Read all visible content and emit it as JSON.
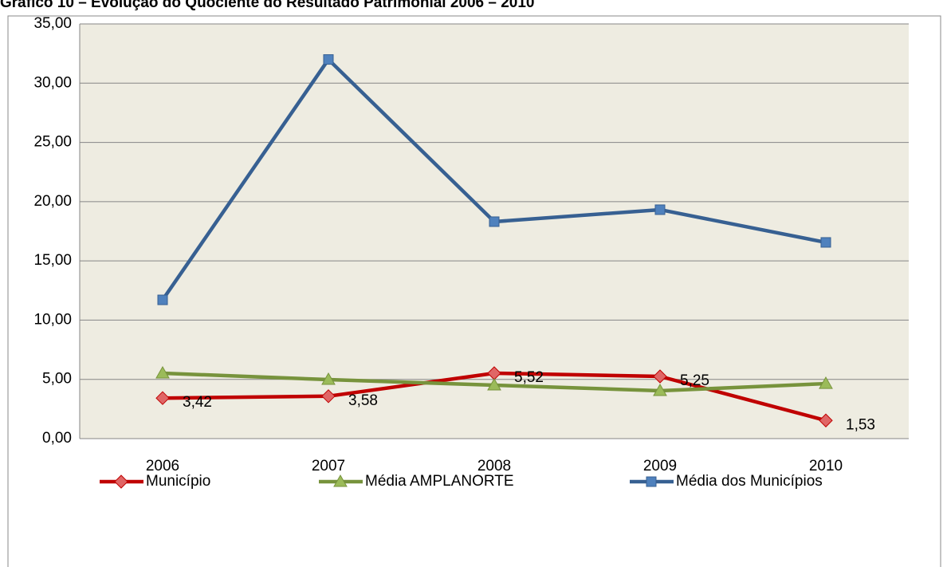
{
  "chart_data": {
    "type": "line",
    "title": "Gráfico 10 – Evolução do Quociente do Resultado Patrimonial 2006 – 2010",
    "categories": [
      "2006",
      "2007",
      "2008",
      "2009",
      "2010"
    ],
    "series": [
      {
        "name": "Município",
        "color": "#c00000",
        "marker_color": "#e06666",
        "marker": "diamond",
        "values": [
          3.42,
          3.58,
          5.52,
          5.25,
          1.53
        ],
        "value_labels": [
          "3,42",
          "3,58",
          "5,52",
          "5,25",
          "1,53"
        ]
      },
      {
        "name": "Média AMPLANORTE",
        "color": "#77933c",
        "marker_color": "#9bbb59",
        "marker": "triangle",
        "values": [
          5.52,
          4.98,
          4.51,
          4.04,
          4.64
        ]
      },
      {
        "name": "Média dos Municípios",
        "color": "#376092",
        "marker_color": "#4f81bd",
        "marker": "square",
        "values": [
          11.71,
          32.0,
          18.31,
          19.32,
          16.56
        ]
      }
    ],
    "ylim": [
      0,
      35
    ],
    "yticks": [
      {
        "value": 0,
        "label": "0,00"
      },
      {
        "value": 5,
        "label": "5,00"
      },
      {
        "value": 10,
        "label": "10,00"
      },
      {
        "value": 15,
        "label": "15,00"
      },
      {
        "value": 20,
        "label": "20,00"
      },
      {
        "value": 25,
        "label": "25,00"
      },
      {
        "value": 30,
        "label": "30,00"
      },
      {
        "value": 35,
        "label": "35,00"
      }
    ],
    "grid": true,
    "legend": "bottom"
  }
}
